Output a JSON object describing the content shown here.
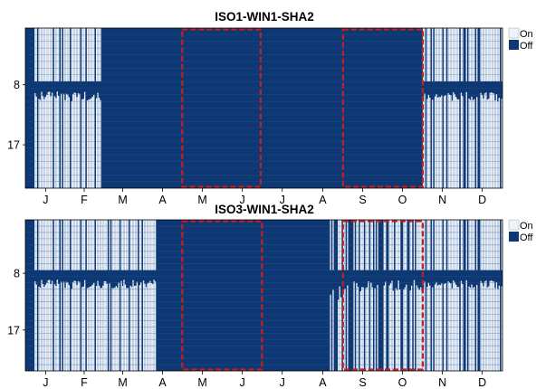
{
  "colors": {
    "on": "#edf3fb",
    "off": "#0e3874",
    "highlight": "#c42020",
    "gridline": "#2f5a93",
    "frame": "#000000"
  },
  "legend": {
    "on": "On",
    "off": "Off"
  },
  "chart_data": [
    {
      "type": "heatmap",
      "title": "ISO1-WIN1-SHA2",
      "xlabel": "",
      "ylabel": "",
      "x": {
        "unit": "day of year",
        "range": [
          1,
          365
        ],
        "tick_labels": [
          "J",
          "F",
          "M",
          "A",
          "M",
          "J",
          "J",
          "A",
          "S",
          "O",
          "N",
          "D"
        ]
      },
      "y": {
        "unit": "hour of day",
        "range": [
          0,
          23
        ],
        "tick_values": [
          8,
          17
        ],
        "tick_labels": [
          "8",
          "17"
        ]
      },
      "legend": [
        "On",
        "Off"
      ],
      "legend_position": "right",
      "highlights": [
        {
          "start_day": 121,
          "end_day": 180
        },
        {
          "start_day": 244,
          "end_day": 304
        }
      ],
      "daily_schedule": {
        "description": "run-length segments of daily schedule pattern",
        "segments": [
          {
            "start_day": 1,
            "end_day": 7,
            "pattern": "off"
          },
          {
            "start_day": 8,
            "end_day": 58,
            "pattern": "winter_mix"
          },
          {
            "start_day": 59,
            "end_day": 304,
            "pattern": "off"
          },
          {
            "start_day": 305,
            "end_day": 365,
            "pattern": "winter_mix"
          }
        ]
      }
    },
    {
      "type": "heatmap",
      "title": "ISO3-WIN1-SHA2",
      "xlabel": "",
      "ylabel": "",
      "x": {
        "unit": "day of year",
        "range": [
          1,
          365
        ],
        "tick_labels": [
          "J",
          "F",
          "M",
          "A",
          "M",
          "J",
          "J",
          "A",
          "S",
          "O",
          "N",
          "D"
        ]
      },
      "y": {
        "unit": "hour of day",
        "range": [
          0,
          23
        ],
        "tick_values": [
          8,
          17
        ],
        "tick_labels": [
          "8",
          "17"
        ]
      },
      "legend": [
        "On",
        "Off"
      ],
      "legend_position": "right",
      "highlights": [
        {
          "start_day": 121,
          "end_day": 181
        },
        {
          "start_day": 244,
          "end_day": 304
        }
      ],
      "daily_schedule": {
        "description": "run-length segments of daily schedule pattern",
        "segments": [
          {
            "start_day": 1,
            "end_day": 7,
            "pattern": "off"
          },
          {
            "start_day": 8,
            "end_day": 100,
            "pattern": "winter_mix"
          },
          {
            "start_day": 101,
            "end_day": 232,
            "pattern": "off"
          },
          {
            "start_day": 233,
            "end_day": 243,
            "pattern": "sparse_mix"
          },
          {
            "start_day": 244,
            "end_day": 304,
            "pattern": "dense_mix"
          },
          {
            "start_day": 305,
            "end_day": 365,
            "pattern": "winter_mix"
          }
        ]
      }
    }
  ]
}
